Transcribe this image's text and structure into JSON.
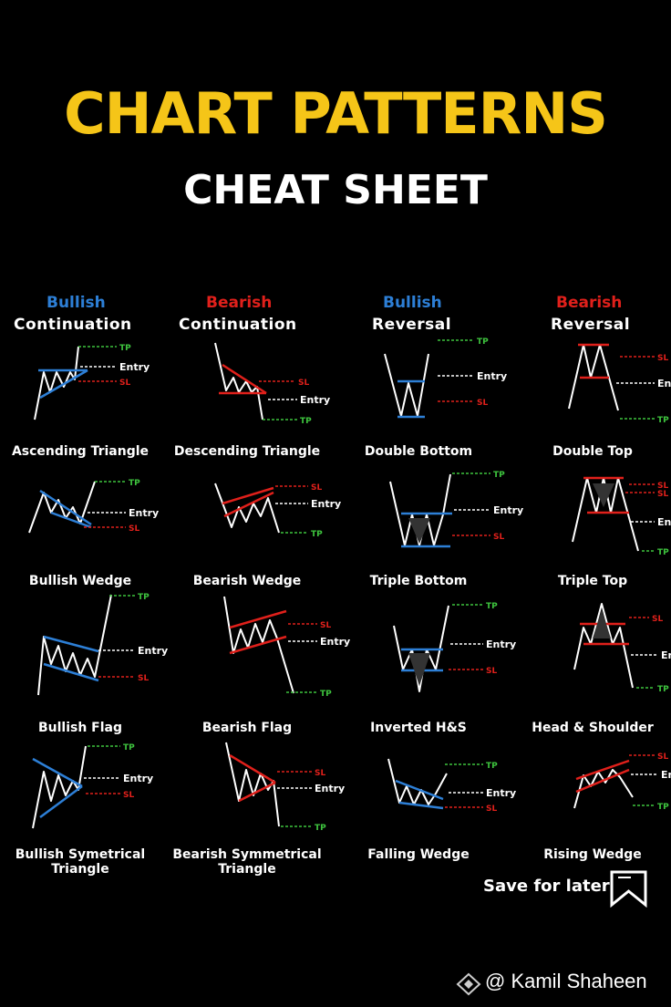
{
  "title": "CHART PATTERNS",
  "subtitle": "CHEAT SHEET",
  "colors": {
    "accent": "#f5c518",
    "bullish": "#2d7fd6",
    "bearish": "#e0201b",
    "tp": "#3ec43e",
    "line": "#ffffff"
  },
  "columns": [
    {
      "direction": "Bullish",
      "kind": "Continuation"
    },
    {
      "direction": "Bearish",
      "kind": "Continuation"
    },
    {
      "direction": "Bullish",
      "kind": "Reversal"
    },
    {
      "direction": "Bearish",
      "kind": "Reversal"
    }
  ],
  "marker_labels": {
    "tp": "TP",
    "sl": "SL",
    "entry": "Entry"
  },
  "patterns": [
    [
      "Ascending Triangle",
      "Descending Triangle",
      "Double Bottom",
      "Double Top"
    ],
    [
      "Bullish Wedge",
      "Bearish Wedge",
      "Triple Bottom",
      "Triple Top"
    ],
    [
      "Bullish Flag",
      "Bearish Flag",
      "Inverted H&S",
      "Head & Shoulder"
    ],
    [
      "Bullish Symetrical\nTriangle",
      "Bearish Symmetrical\nTriangle",
      "Falling Wedge",
      "Rising Wedge"
    ]
  ],
  "save_label": "Save for later",
  "author": "@ Kamil Shaheen",
  "icons": {
    "save": "bookmark-icon",
    "author": "brand-diamond-icon"
  }
}
